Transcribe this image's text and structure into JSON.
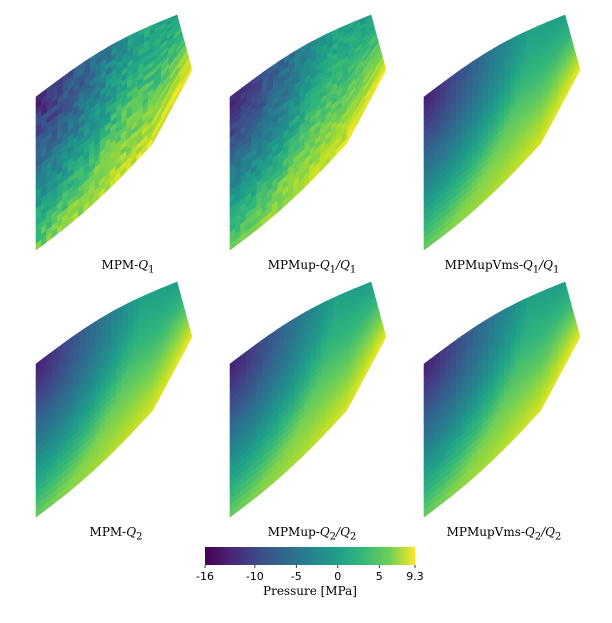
{
  "chart_data": {
    "type": "heatmap",
    "panels": [
      {
        "label_prefix": "MPM-",
        "label_math": "Q",
        "sub": "1",
        "label_suffix": "",
        "sub2": "",
        "variant": "noisy"
      },
      {
        "label_prefix": "MPMup-",
        "label_math": "Q",
        "sub": "1",
        "label_suffix": "/Q",
        "sub2": "1",
        "variant": "noisy-mid"
      },
      {
        "label_prefix": "MPMupVms-",
        "label_math": "Q",
        "sub": "1",
        "label_suffix": "/Q",
        "sub2": "1",
        "variant": "smooth"
      },
      {
        "label_prefix": "MPM-",
        "label_math": "Q",
        "sub": "2",
        "label_suffix": "",
        "sub2": "",
        "variant": "smooth"
      },
      {
        "label_prefix": "MPMup-",
        "label_math": "Q",
        "sub": "2",
        "label_suffix": "/Q",
        "sub2": "2",
        "variant": "smooth"
      },
      {
        "label_prefix": "MPMupVms-",
        "label_math": "Q",
        "sub": "2",
        "label_suffix": "/Q",
        "sub2": "2",
        "variant": "smooth"
      }
    ],
    "colorbar": {
      "title": "Pressure [MPa]",
      "min": -16,
      "max": 9.3,
      "ticks": [
        -16,
        -10,
        -5,
        0,
        5,
        9.3
      ],
      "tick_labels": [
        "-16",
        "-10",
        "-5",
        "0",
        "5",
        "9.3"
      ],
      "colormap": "viridis"
    }
  }
}
